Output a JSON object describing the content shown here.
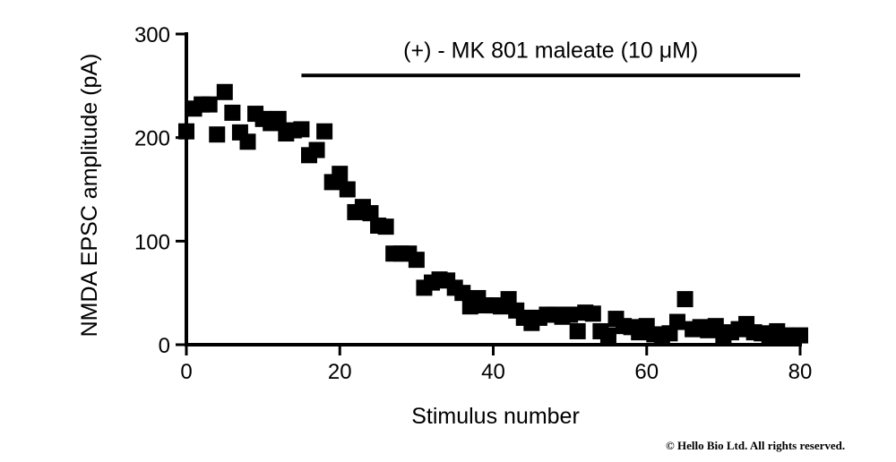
{
  "chart_data": {
    "type": "scatter",
    "title": "",
    "xlabel": "Stimulus number",
    "ylabel": "NMDA EPSC amplitude (pA)",
    "xlim": [
      0,
      80
    ],
    "ylim": [
      0,
      300
    ],
    "xticks": [
      0,
      20,
      40,
      60,
      80
    ],
    "yticks": [
      0,
      100,
      200,
      300
    ],
    "grid": false,
    "marker": "square",
    "color": "#000000",
    "annotation": {
      "text": "(+) - MK 801 maleate (10 μM)",
      "x_start": 15,
      "x_end": 80,
      "y": 260
    },
    "x": [
      0,
      1,
      2,
      3,
      4,
      5,
      6,
      7,
      8,
      9,
      10,
      11,
      12,
      13,
      14,
      15,
      16,
      17,
      18,
      19,
      20,
      21,
      22,
      23,
      24,
      25,
      26,
      27,
      28,
      29,
      30,
      31,
      32,
      33,
      34,
      35,
      36,
      37,
      38,
      39,
      40,
      41,
      42,
      43,
      44,
      45,
      46,
      47,
      48,
      49,
      50,
      51,
      52,
      53,
      54,
      55,
      56,
      57,
      58,
      59,
      60,
      61,
      62,
      63,
      64,
      65,
      66,
      67,
      68,
      69,
      70,
      71,
      72,
      73,
      74,
      75,
      76,
      77,
      78,
      79,
      80
    ],
    "y": [
      206,
      228,
      232,
      232,
      203,
      244,
      224,
      205,
      196,
      223,
      218,
      214,
      218,
      204,
      207,
      208,
      183,
      188,
      206,
      157,
      165,
      150,
      128,
      133,
      127,
      115,
      114,
      88,
      88,
      88,
      82,
      55,
      60,
      63,
      62,
      55,
      50,
      37,
      45,
      38,
      38,
      37,
      44,
      33,
      26,
      21,
      26,
      29,
      29,
      27,
      29,
      13,
      31,
      30,
      13,
      9,
      25,
      18,
      17,
      12,
      18,
      10,
      9,
      11,
      22,
      44,
      15,
      17,
      14,
      18,
      9,
      12,
      15,
      20,
      12,
      11,
      7,
      13,
      9,
      8,
      9
    ]
  },
  "copyright": "© Hello Bio Ltd. All rights reserved."
}
